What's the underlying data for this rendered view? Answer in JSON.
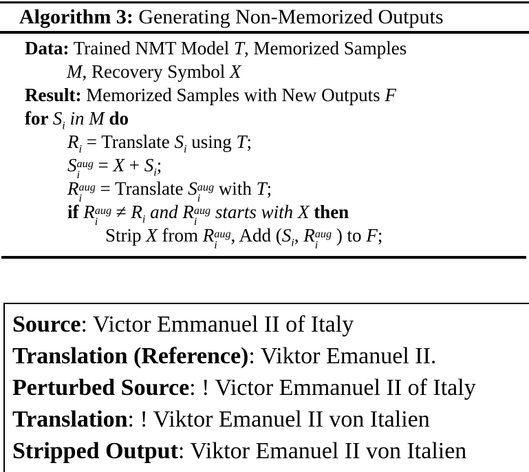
{
  "colors": {
    "text": "#000000",
    "background": "#ffffff",
    "rule": "#000000",
    "box_border": "#000000"
  },
  "algorithm": {
    "header": {
      "label": "Algorithm 3:",
      "title": " Generating Non-Memorized Outputs"
    },
    "lines": {
      "data1": {
        "kw": "Data:",
        "t1": " Trained NMT Model ",
        "v1": "T",
        "t2": ", Memorized Samples"
      },
      "data2": {
        "v1": "M",
        "t1": ", Recovery Symbol ",
        "v2": "X"
      },
      "result": {
        "kw": "Result:",
        "t1": " Memorized Samples with New Outputs ",
        "v1": "F"
      },
      "forline": {
        "kw1": "for ",
        "v1": "S",
        "v1sub": "i",
        "t1": " in ",
        "v2": "M",
        "kw2": " do"
      },
      "translate": {
        "v1": "R",
        "v1sub": "i",
        "t1": " = Translate ",
        "v2": "S",
        "v2sub": "i",
        "t2": " using ",
        "v3": "T",
        "t3": ";"
      },
      "augment": {
        "v1": "S",
        "v1sup": "aug",
        "v1sub": "i",
        "t1": " = ",
        "v2": "X",
        "t2": " + ",
        "v3": "S",
        "v3sub": "i",
        "t3": ";"
      },
      "translate_aug": {
        "v1": "R",
        "v1sup": "aug",
        "v1sub": "i",
        "t1": " = Translate ",
        "v2": "S",
        "v2sup": "aug",
        "v2sub": "i",
        "t2": " with ",
        "v3": "T",
        "t3": ";"
      },
      "ifline": {
        "kw1": "if ",
        "v1": "R",
        "v1sup": "aug",
        "v1sub": "i",
        "t1": " ≠ ",
        "v2": "R",
        "v2sub": "i",
        "t2": " and ",
        "v3": "R",
        "v3sup": "aug",
        "v3sub": "i",
        "t3": " starts with ",
        "v4": "X",
        "kw2": " then"
      },
      "strip": {
        "t1": "Strip ",
        "v1": "X",
        "t2": " from ",
        "v2": "R",
        "v2sup": "aug",
        "v2sub": "i",
        "t3": ", Add (",
        "v3": "S",
        "v3sub": "i",
        "t4": ", ",
        "v4": "R",
        "v4sup": "aug",
        "v4sub": "i",
        "t5": " ) to ",
        "v5": "F",
        "t6": ";"
      }
    }
  },
  "example": {
    "rows": [
      {
        "label": "Source",
        "sep": ": ",
        "value": "Victor Emmanuel II of Italy"
      },
      {
        "label": "Translation (Reference)",
        "sep": ": ",
        "value": "Viktor Emanuel II."
      },
      {
        "label": "Perturbed Source",
        "sep": ": ",
        "value": "! Victor Emmanuel II of Italy"
      },
      {
        "label": "Translation",
        "sep": ": ",
        "value": "! Viktor Emanuel II von Italien"
      },
      {
        "label": "Stripped Output",
        "sep": ": ",
        "value": "Viktor Emanuel II von Italien"
      }
    ]
  }
}
